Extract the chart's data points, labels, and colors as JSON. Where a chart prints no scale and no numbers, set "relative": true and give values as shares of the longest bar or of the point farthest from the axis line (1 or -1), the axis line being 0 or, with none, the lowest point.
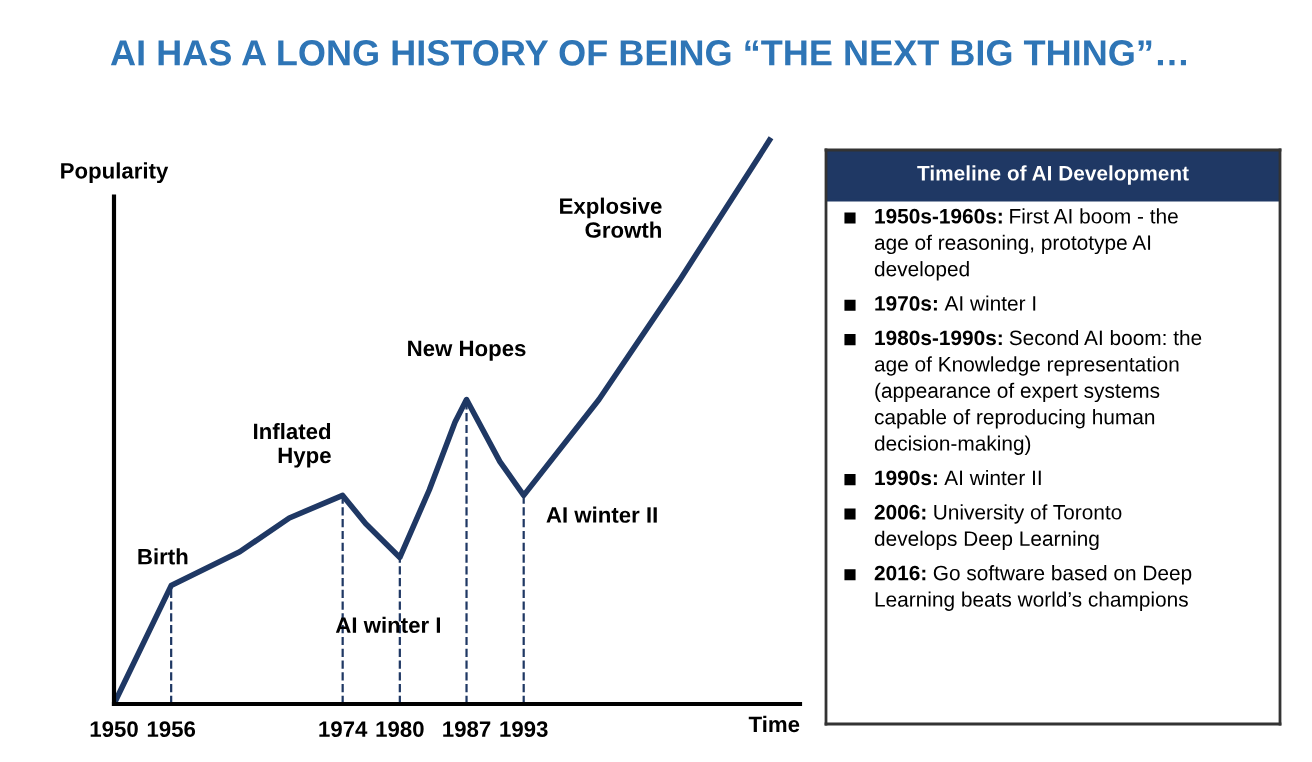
{
  "chart_data": [
    {
      "type": "line",
      "title": "AI HAS A LONG HISTORY OF BEING “THE NEXT BIG THING”…",
      "xlabel": "Time",
      "ylabel": "Popularity",
      "relative": true,
      "x": [
        1950,
        1956,
        1963.2,
        1968.4,
        1974,
        1976.4,
        1980,
        1983.1,
        1985.8,
        1987,
        1990.5,
        1993,
        2000.9,
        2009.3,
        2018.8
      ],
      "series": [
        {
          "color": "#1f3864",
          "values": [
            0,
            0.21,
            0.27,
            0.33,
            0.37,
            0.32,
            0.26,
            0.38,
            0.5,
            0.54,
            0.43,
            0.37,
            0.54,
            0.75,
            1.0
          ]
        }
      ],
      "xlim": [
        1950,
        2022
      ],
      "xticks": [
        1950,
        1956,
        1974,
        1980,
        1987,
        1993
      ],
      "grid": false,
      "legend": false,
      "marker": "none",
      "line_style": "solid",
      "ref_lines": [
        {
          "axis": "x",
          "value": 1956,
          "line_style": "dashed"
        },
        {
          "axis": "x",
          "value": 1974,
          "line_style": "dashed"
        },
        {
          "axis": "x",
          "value": 1980,
          "line_style": "dashed"
        },
        {
          "axis": "x",
          "value": 1987,
          "line_style": "dashed"
        },
        {
          "axis": "x",
          "value": 1993,
          "line_style": "dashed"
        }
      ],
      "annotations": [
        {
          "text": "Birth",
          "x": 1956,
          "y": 0.21
        },
        {
          "text": "Inflated\nHype",
          "x": 1974,
          "y": 0.37
        },
        "AI winter I",
        {
          "text": "New Hopes",
          "x": 1987,
          "y": 0.54
        },
        {
          "text": "AI winter II",
          "x": 1993,
          "y": 0.37
        },
        {
          "text": "Explosive\nGrowth",
          "x": 2009.3,
          "y": 0.75
        }
      ]
    },
    {
      "type": "other",
      "title": "Timeline of AI Development",
      "annotations": [
        "1950s-1960s: First AI boom - the\nage of reasoning, prototype AI\ndeveloped",
        "1970s: AI winter I",
        "1980s-1990s: Second AI boom: the\nage of Knowledge representation\n(appearance of expert systems\ncapable of reproducing human\ndecision-making)",
        "1990s: AI winter II",
        "2006: University of Toronto\ndevelops Deep Learning",
        "2016: Go software based on Deep\nLearning beats world’s champions"
      ]
    }
  ]
}
